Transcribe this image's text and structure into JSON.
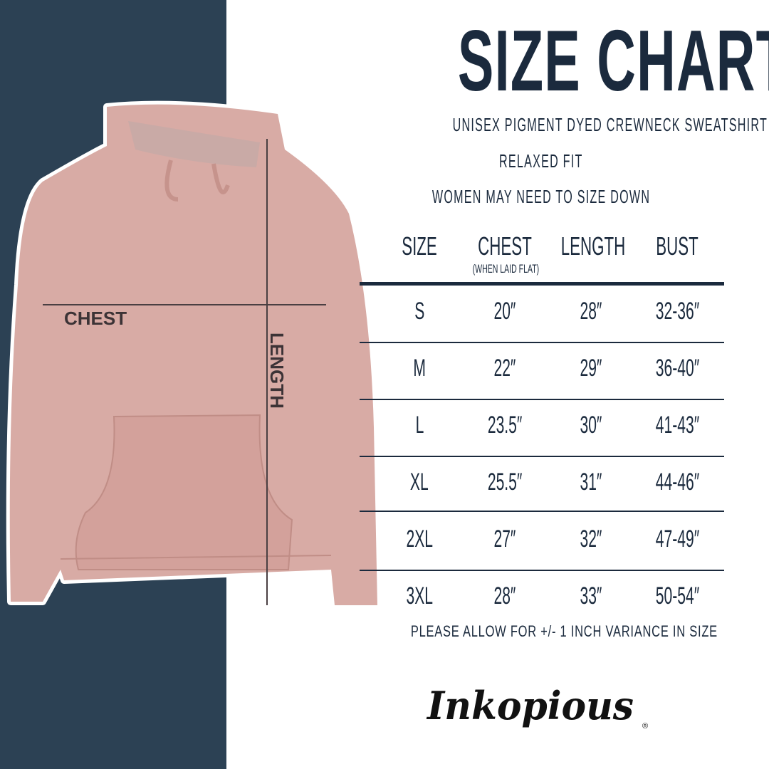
{
  "title": "SIZE CHART",
  "subtitle": "UNISEX PIGMENT DYED CREWNECK SWEATSHIRT",
  "fit": "RELAXED FIT",
  "advice": "WOMEN MAY NEED TO SIZE DOWN",
  "diagram": {
    "chest_label": "CHEST",
    "length_label": "LENGTH"
  },
  "table": {
    "headers": [
      "SIZE",
      "CHEST",
      "LENGTH",
      "BUST"
    ],
    "chest_note": "(WHEN LAID FLAT)",
    "rows": [
      [
        "S",
        "20″",
        "28″",
        "32-36″"
      ],
      [
        "M",
        "22″",
        "29″",
        "36-40″"
      ],
      [
        "L",
        "23.5″",
        "30″",
        "41-43″"
      ],
      [
        "XL",
        "25.5″",
        "31″",
        "44-46″"
      ],
      [
        "2XL",
        "27″",
        "32″",
        "47-49″"
      ],
      [
        "3XL",
        "28″",
        "33″",
        "50-54″"
      ]
    ]
  },
  "footnote": "PLEASE ALLOW FOR +/- 1 INCH VARIANCE IN SIZE",
  "brand": "Inkopious",
  "colors": {
    "navy": "#2c4154",
    "text": "#1b2a3d",
    "hoodie": "#d8aba5"
  }
}
